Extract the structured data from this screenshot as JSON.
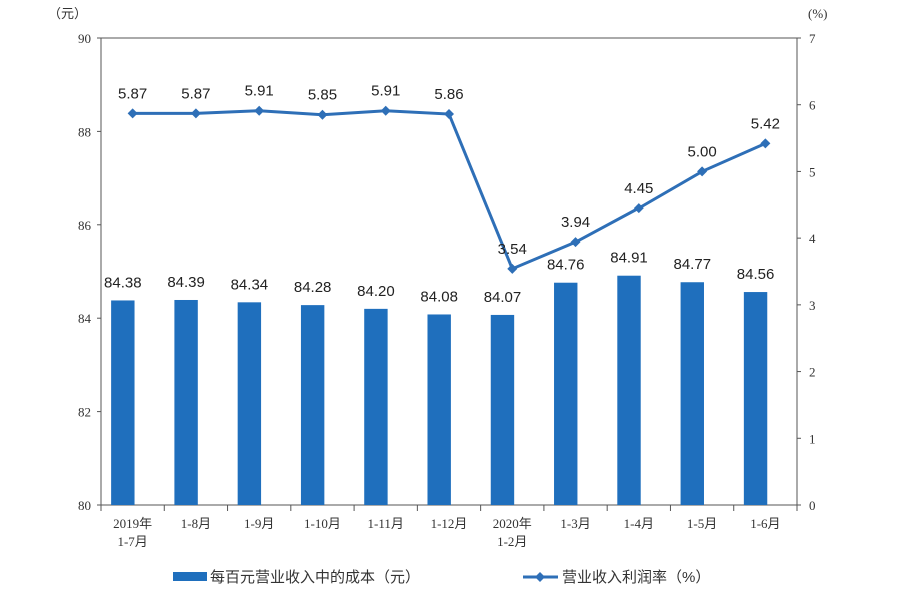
{
  "chart_data": {
    "type": "bar+line",
    "categories": [
      [
        "2019年",
        "1-7月"
      ],
      [
        "1-8月"
      ],
      [
        "1-9月"
      ],
      [
        "1-10月"
      ],
      [
        "1-11月"
      ],
      [
        "1-12月"
      ],
      [
        "2020年",
        "1-2月"
      ],
      [
        "1-3月"
      ],
      [
        "1-4月"
      ],
      [
        "1-5月"
      ],
      [
        "1-6月"
      ]
    ],
    "series": [
      {
        "name": "每百元营业收入中的成本（元）",
        "type": "bar",
        "axis": "left",
        "color": "#1f6fbd",
        "values": [
          84.38,
          84.39,
          84.34,
          84.28,
          84.2,
          84.08,
          84.07,
          84.76,
          84.91,
          84.77,
          84.56
        ]
      },
      {
        "name": "营业收入利润率（%）",
        "type": "line",
        "axis": "right",
        "color": "#2e6fb7",
        "values": [
          5.87,
          5.87,
          5.91,
          5.85,
          5.91,
          5.86,
          3.54,
          3.94,
          4.45,
          5.0,
          5.42
        ]
      }
    ],
    "left_axis": {
      "unit": "（元）",
      "range": [
        80,
        90
      ],
      "ticks": [
        80,
        82,
        84,
        86,
        88,
        90
      ]
    },
    "right_axis": {
      "unit": "(%)",
      "range": [
        0,
        7
      ],
      "ticks": [
        0,
        1,
        2,
        3,
        4,
        5,
        6,
        7
      ]
    },
    "grid": false,
    "legend": "bottom"
  }
}
